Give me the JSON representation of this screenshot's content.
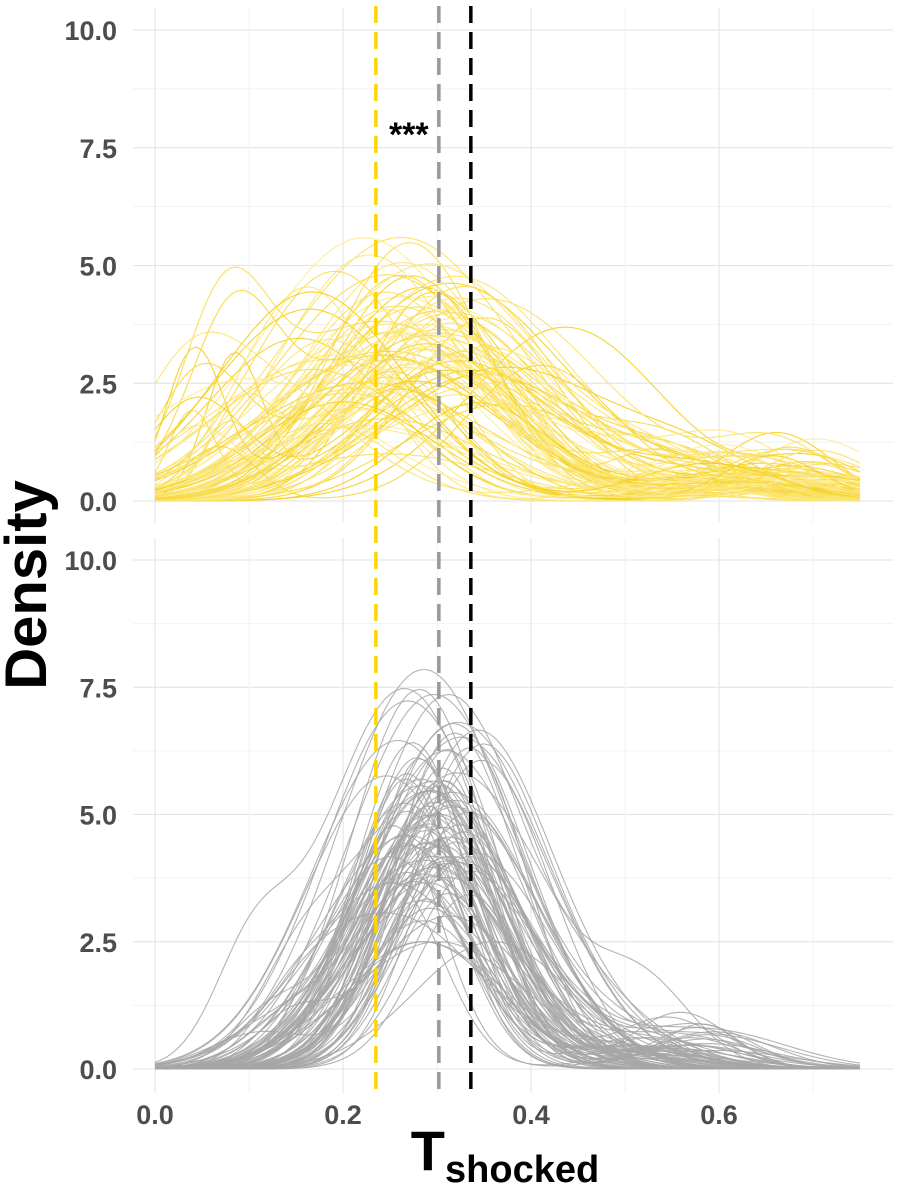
{
  "chart_data": {
    "type": "line",
    "xlabel_main": "T",
    "xlabel_sub": "shocked",
    "ylabel": "Density",
    "xlim": [
      0,
      0.75
    ],
    "ylim": [
      0,
      10.5
    ],
    "x_ticks": [
      "0.0",
      "0.2",
      "0.4",
      "0.6"
    ],
    "y_ticks": [
      "0.0",
      "2.5",
      "5.0",
      "7.5",
      "10.0"
    ],
    "grid": true,
    "reference_lines": [
      {
        "x": 0.235,
        "color": "#FFD400",
        "style": "dashed"
      },
      {
        "x": 0.302,
        "color": "#999999",
        "style": "dashed"
      },
      {
        "x": 0.336,
        "color": "#000000",
        "style": "dashed"
      }
    ],
    "panels": [
      {
        "color": "#F5D020",
        "color_light": "#FFF3B0",
        "curve_count": 100,
        "annotation": {
          "text": "***",
          "x": 0.27,
          "y": 8.0
        },
        "typical_peak": {
          "x": 0.27,
          "density": 3.5
        },
        "peak_range": [
          1.5,
          5.6
        ],
        "max_peak": 5.6
      },
      {
        "color": "#A6A6A6",
        "curve_count": 100,
        "typical_peak": {
          "x": 0.3,
          "density": 4.8
        },
        "peak_range": [
          2.5,
          8.4
        ],
        "max_peak": 8.4
      }
    ]
  }
}
